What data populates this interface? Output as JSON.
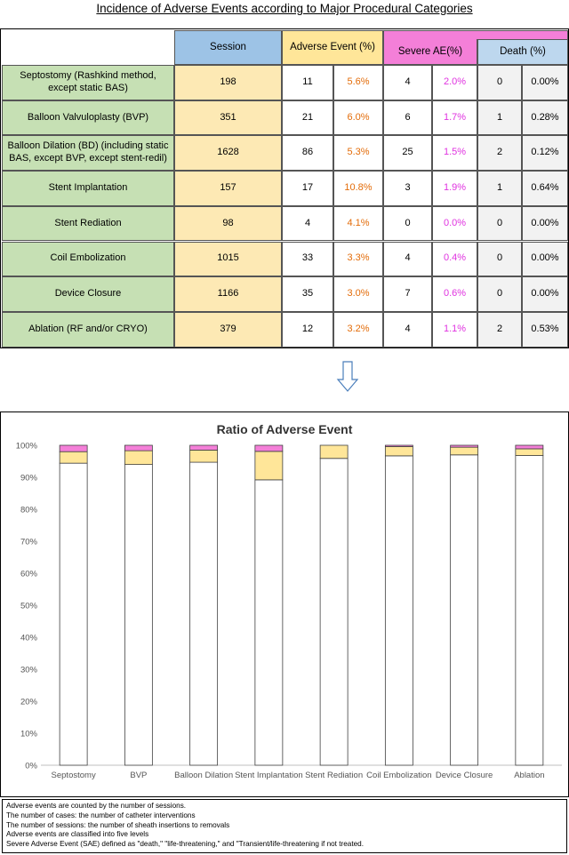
{
  "title": "Incidence of Adverse Events according to Major Procedural Categories",
  "table": {
    "headers": {
      "session": "Session",
      "adverse_event": "Adverse Event (%)",
      "severe_ae": "Severe AE(%)",
      "death": "Death (%)"
    },
    "rows": [
      {
        "label": "Septostomy (Rashkind method, except static BAS)",
        "session": "198",
        "ae": "11",
        "ae_pct": "5.6%",
        "sae": "4",
        "sae_pct": "2.0%",
        "death": "0",
        "death_pct": "0.00%"
      },
      {
        "label": "Balloon Valvuloplasty (BVP)",
        "session": "351",
        "ae": "21",
        "ae_pct": "6.0%",
        "sae": "6",
        "sae_pct": "1.7%",
        "death": "1",
        "death_pct": "0.28%"
      },
      {
        "label": "Balloon Dilation (BD) (including static BAS, except BVP, except stent-redil)",
        "session": "1628",
        "ae": "86",
        "ae_pct": "5.3%",
        "sae": "25",
        "sae_pct": "1.5%",
        "death": "2",
        "death_pct": "0.12%"
      },
      {
        "label": "Stent Implantation",
        "session": "157",
        "ae": "17",
        "ae_pct": "10.8%",
        "sae": "3",
        "sae_pct": "1.9%",
        "death": "1",
        "death_pct": "0.64%"
      },
      {
        "label": "Stent Rediation",
        "session": "98",
        "ae": "4",
        "ae_pct": "4.1%",
        "sae": "0",
        "sae_pct": "0.0%",
        "death": "0",
        "death_pct": "0.00%"
      },
      {
        "label": "Coil Embolization",
        "session": "1015",
        "ae": "33",
        "ae_pct": "3.3%",
        "sae": "4",
        "sae_pct": "0.4%",
        "death": "0",
        "death_pct": "0.00%"
      },
      {
        "label": "Device Closure",
        "session": "1166",
        "ae": "35",
        "ae_pct": "3.0%",
        "sae": "7",
        "sae_pct": "0.6%",
        "death": "0",
        "death_pct": "0.00%"
      },
      {
        "label": "Ablation (RF and/or CRYO)",
        "session": "379",
        "ae": "12",
        "ae_pct": "3.2%",
        "sae": "4",
        "sae_pct": "1.1%",
        "death": "2",
        "death_pct": "0.53%"
      }
    ]
  },
  "chart_data": {
    "type": "bar",
    "stacked": true,
    "title": "Ratio of Adverse Event",
    "categories": [
      "Septostomy",
      "BVP",
      "Balloon Dilation",
      "Stent Implantation",
      "Stent Rediation",
      "Coil Embolization",
      "Device Closure",
      "Ablation"
    ],
    "ylim": [
      0,
      100
    ],
    "yticks": [
      "0%",
      "10%",
      "20%",
      "30%",
      "40%",
      "50%",
      "60%",
      "70%",
      "80%",
      "90%",
      "100%"
    ],
    "series": [
      {
        "values": [
          94.4,
          94.0,
          94.7,
          89.2,
          95.9,
          96.7,
          97.0,
          96.8
        ],
        "color": "#ffffff"
      },
      {
        "values": [
          3.6,
          4.3,
          3.8,
          8.9,
          4.1,
          2.9,
          2.4,
          2.1
        ],
        "color": "#ffe699"
      },
      {
        "values": [
          2.0,
          1.7,
          1.5,
          1.9,
          0.0,
          0.4,
          0.6,
          1.1
        ],
        "color": "#f47fd8"
      }
    ],
    "grid": false,
    "legend": "none"
  },
  "notes": [
    "Adverse events are counted by the number of sessions.",
    "The number of cases: the number of catheter interventions",
    "The number of sessions: the number of sheath insertions to removals",
    "Adverse events are classified into five levels",
    "Severe Adverse Event (SAE) defined as \"death,\" \"life-threatening,\" and \"Transient/life-threatening if not treated."
  ],
  "icons": {
    "arrow": "down-arrow-icon"
  }
}
